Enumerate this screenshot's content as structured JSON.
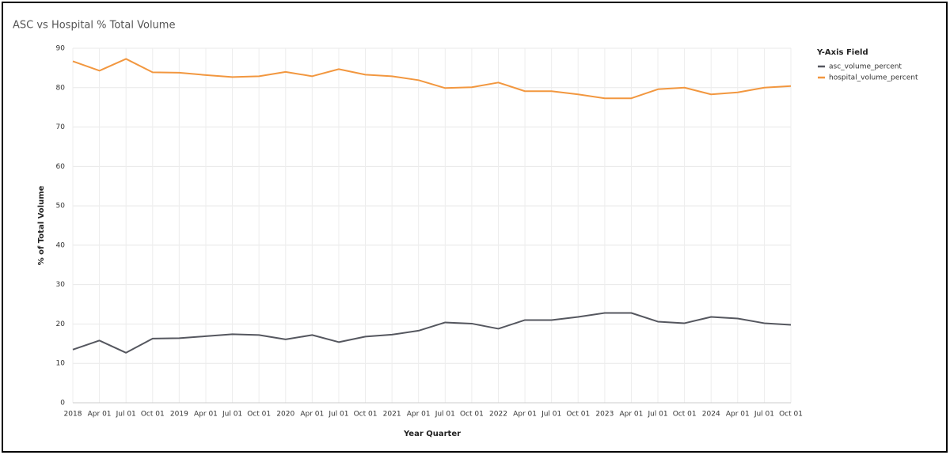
{
  "chart_data": {
    "type": "line",
    "title": "ASC vs Hospital % Total Volume",
    "x_label": "Year Quarter",
    "y_label": "% of Total Volume",
    "legend_title": "Y-Axis Field",
    "legend_position": "right",
    "grid": true,
    "categories": [
      "2018",
      "Apr 01",
      "Jul 01",
      "Oct 01",
      "2019",
      "Apr 01",
      "Jul 01",
      "Oct 01",
      "2020",
      "Apr 01",
      "Jul 01",
      "Oct 01",
      "2021",
      "Apr 01",
      "Jul 01",
      "Oct 01",
      "2022",
      "Apr 01",
      "Jul 01",
      "Oct 01",
      "2023",
      "Apr 01",
      "Jul 01",
      "Oct 01",
      "2024",
      "Apr 01",
      "Jul 01",
      "Oct 01"
    ],
    "series": [
      {
        "name": "asc_volume_percent",
        "color": "#55575f",
        "values": [
          13.5,
          15.8,
          12.7,
          16.3,
          16.4,
          16.9,
          17.4,
          17.2,
          16.1,
          17.2,
          15.4,
          16.8,
          17.3,
          18.3,
          20.4,
          20.1,
          18.8,
          21.0,
          21.0,
          21.8,
          22.8,
          22.8,
          20.6,
          20.2,
          21.8,
          21.4,
          20.2,
          19.8
        ]
      },
      {
        "name": "hospital_volume_percent",
        "color": "#f2973f",
        "values": [
          86.7,
          84.3,
          87.3,
          83.9,
          83.8,
          83.2,
          82.7,
          82.9,
          84.0,
          82.9,
          84.7,
          83.3,
          82.9,
          81.9,
          79.9,
          80.1,
          81.3,
          79.1,
          79.1,
          78.3,
          77.3,
          77.3,
          79.6,
          80.0,
          78.3,
          78.8,
          80.0,
          80.4
        ]
      }
    ],
    "ylim": [
      0,
      90
    ],
    "yticks": [
      0,
      10,
      20,
      30,
      40,
      50,
      60,
      70,
      80,
      90
    ]
  }
}
